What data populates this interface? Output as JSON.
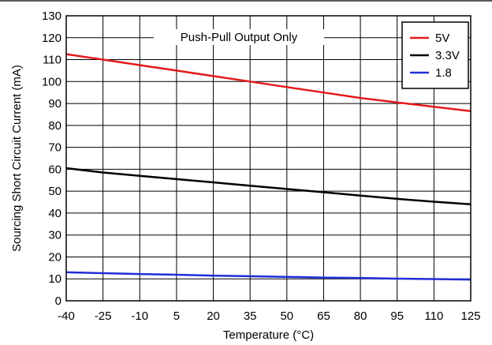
{
  "chart_data": {
    "type": "line",
    "title": "",
    "annotation": "Push-Pull Output Only",
    "xlabel": "Temperature (°C)",
    "ylabel": "Sourcing Short Circuit Current (mA)",
    "x_ticks": [
      "-40",
      "-25",
      "-10",
      "5",
      "20",
      "35",
      "50",
      "65",
      "80",
      "95",
      "110",
      "125"
    ],
    "y_ticks": [
      "0",
      "10",
      "20",
      "30",
      "40",
      "50",
      "60",
      "70",
      "80",
      "90",
      "100",
      "110",
      "120",
      "130"
    ],
    "xlim": [
      -40,
      125
    ],
    "ylim": [
      0,
      130
    ],
    "grid": true,
    "legend_position": "top-right",
    "series": [
      {
        "name": "5V",
        "color": "#e31a1c",
        "x": [
          -40,
          -25,
          -10,
          5,
          20,
          35,
          50,
          65,
          80,
          95,
          110,
          125
        ],
        "y": [
          112.5,
          110.0,
          107.5,
          105.0,
          102.5,
          100.0,
          97.5,
          95.0,
          92.5,
          90.5,
          88.5,
          86.5
        ]
      },
      {
        "name": "3.3V",
        "color": "#000000",
        "x": [
          -40,
          -25,
          -10,
          5,
          20,
          35,
          50,
          65,
          80,
          95,
          110,
          125
        ],
        "y": [
          60.5,
          58.5,
          57.0,
          55.5,
          54.0,
          52.5,
          51.0,
          49.5,
          48.0,
          46.5,
          45.2,
          44.0
        ]
      },
      {
        "name": "1.8",
        "color": "#1f2fd6",
        "x": [
          -40,
          -25,
          -10,
          5,
          20,
          35,
          50,
          65,
          80,
          95,
          110,
          125
        ],
        "y": [
          13.0,
          12.6,
          12.2,
          11.9,
          11.5,
          11.2,
          10.9,
          10.6,
          10.4,
          10.1,
          9.9,
          9.7
        ]
      }
    ]
  }
}
